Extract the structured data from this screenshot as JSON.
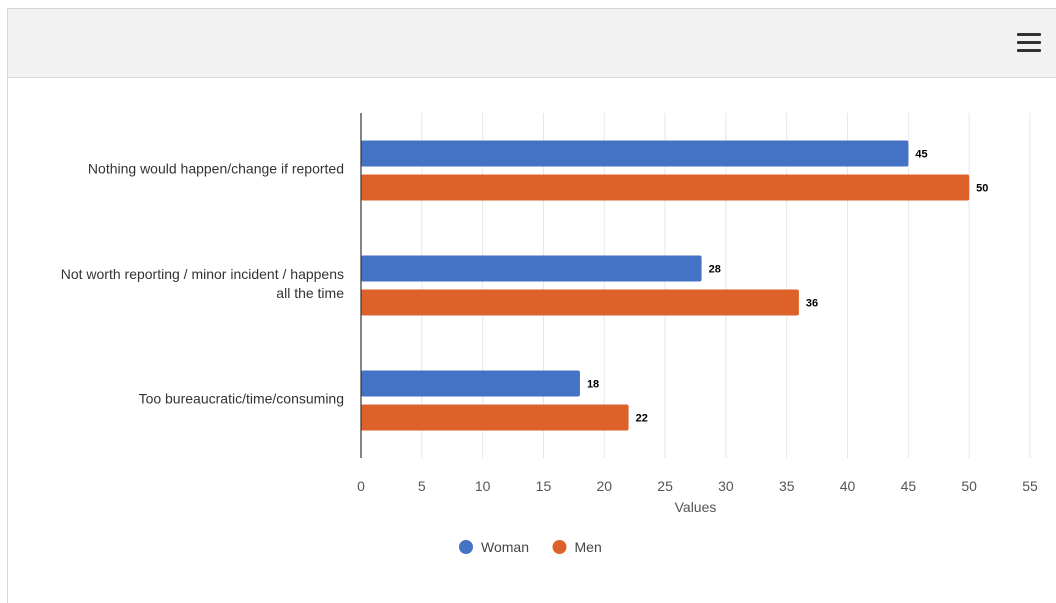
{
  "toolbar": {
    "menu_icon": "hamburger-menu-icon"
  },
  "chart_data": {
    "type": "bar",
    "orientation": "horizontal",
    "categories": [
      [
        "Nothing would happen/change if reported"
      ],
      [
        "Not worth reporting / minor incident / happens",
        "all the time"
      ],
      [
        "Too bureaucratic/time/consuming"
      ]
    ],
    "series": [
      {
        "name": "Woman",
        "color": "#4472c4",
        "values": [
          45,
          28,
          18
        ]
      },
      {
        "name": "Men",
        "color": "#dd6229",
        "values": [
          50,
          36,
          22
        ]
      }
    ],
    "xlabel": "Values",
    "xlim": [
      0,
      55
    ],
    "xticks": [
      0,
      5,
      10,
      15,
      20,
      25,
      30,
      35,
      40,
      45,
      50,
      55
    ],
    "grid": true,
    "data_labels": true,
    "legend_position": "bottom"
  }
}
